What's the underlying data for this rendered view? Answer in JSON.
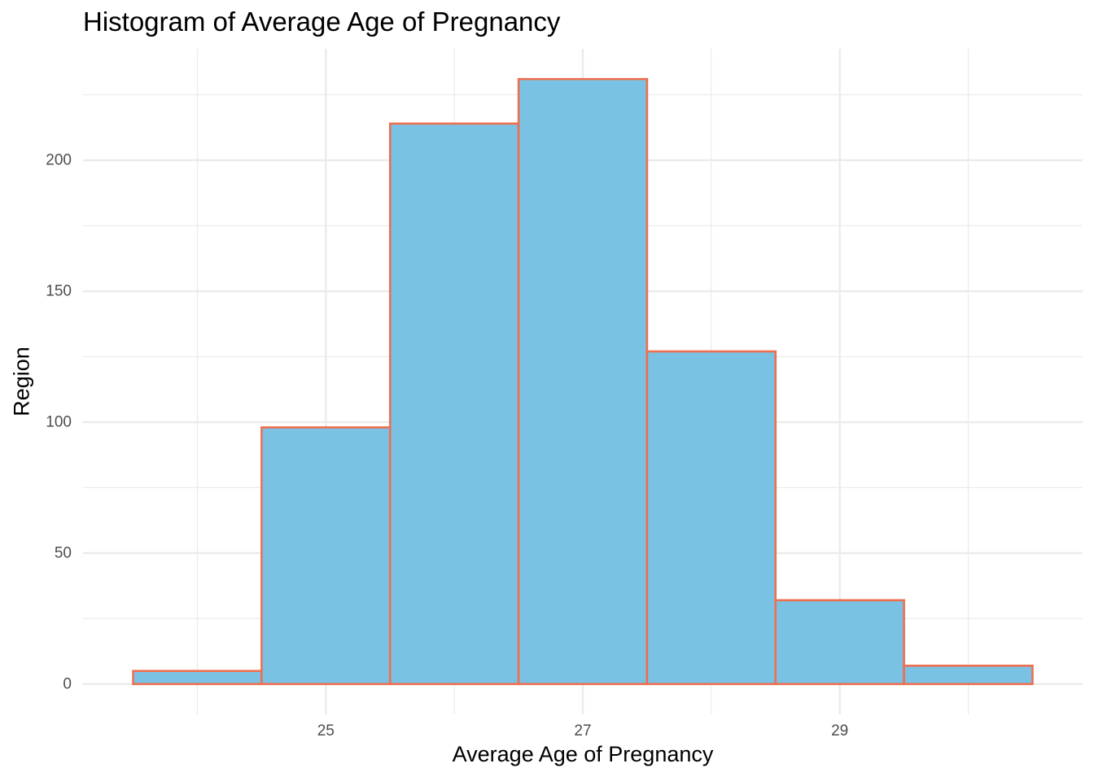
{
  "chart_data": {
    "type": "bar",
    "title": "Histogram of Average Age of Pregnancy",
    "xlabel": "Average Age of Pregnancy",
    "ylabel": "Region",
    "bins": [
      {
        "x_start": 23.5,
        "x_end": 24.5,
        "count": 5
      },
      {
        "x_start": 24.5,
        "x_end": 25.5,
        "count": 98
      },
      {
        "x_start": 25.5,
        "x_end": 26.5,
        "count": 214
      },
      {
        "x_start": 26.5,
        "x_end": 27.5,
        "count": 231
      },
      {
        "x_start": 27.5,
        "x_end": 28.5,
        "count": 127
      },
      {
        "x_start": 28.5,
        "x_end": 29.5,
        "count": 32
      },
      {
        "x_start": 29.5,
        "x_end": 30.5,
        "count": 7
      }
    ],
    "x_ticks": [
      25,
      27,
      29
    ],
    "x_minor_ticks": [
      24,
      26,
      28,
      30
    ],
    "y_ticks": [
      0,
      50,
      100,
      150,
      200
    ],
    "y_minor_ticks": [
      25,
      75,
      125,
      175,
      225
    ],
    "xlim": [
      23.11,
      30.89
    ],
    "ylim": [
      -11.55,
      242.55
    ],
    "grid": true,
    "colors": {
      "fill": "#7AC2E4",
      "outline": "#EE6F4E",
      "grid": "#EBEBEB"
    }
  }
}
